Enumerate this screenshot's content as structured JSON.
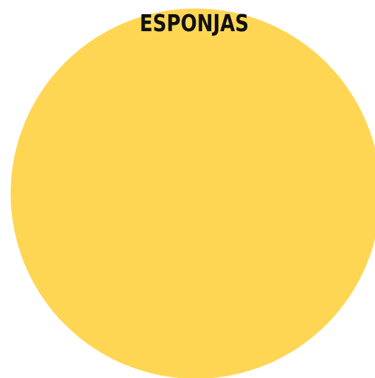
{
  "title": "ESPONJAS",
  "colors": {
    "circle": "#ffd653",
    "text": "#111111",
    "background": "#ffffff"
  }
}
